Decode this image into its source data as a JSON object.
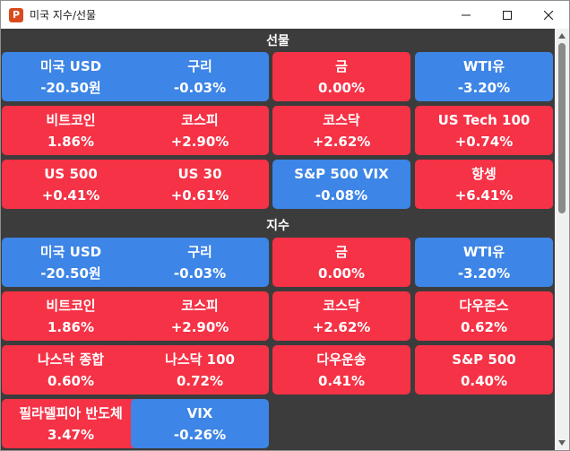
{
  "window": {
    "icon_letter": "P",
    "title": "미국 지수/선물"
  },
  "sections": [
    {
      "header": "선물",
      "tiles": [
        {
          "name": "미국 USD",
          "value": "-20.50원",
          "color": "blue"
        },
        {
          "name": "구리",
          "value": "-0.03%",
          "color": "blue"
        },
        {
          "name": "금",
          "value": "0.00%",
          "color": "red"
        },
        {
          "name": "WTI유",
          "value": "-3.20%",
          "color": "blue"
        },
        {
          "name": "비트코인",
          "value": "1.86%",
          "color": "red"
        },
        {
          "name": "코스피",
          "value": "+2.90%",
          "color": "red"
        },
        {
          "name": "코스닥",
          "value": "+2.62%",
          "color": "red"
        },
        {
          "name": "US Tech 100",
          "value": "+0.74%",
          "color": "red"
        },
        {
          "name": "US 500",
          "value": "+0.41%",
          "color": "red"
        },
        {
          "name": "US 30",
          "value": "+0.61%",
          "color": "red"
        },
        {
          "name": "S&P 500 VIX",
          "value": "-0.08%",
          "color": "blue"
        },
        {
          "name": "항셍",
          "value": "+6.41%",
          "color": "red"
        }
      ]
    },
    {
      "header": "지수",
      "tiles": [
        {
          "name": "미국 USD",
          "value": "-20.50원",
          "color": "blue"
        },
        {
          "name": "구리",
          "value": "-0.03%",
          "color": "blue"
        },
        {
          "name": "금",
          "value": "0.00%",
          "color": "red"
        },
        {
          "name": "WTI유",
          "value": "-3.20%",
          "color": "blue"
        },
        {
          "name": "비트코인",
          "value": "1.86%",
          "color": "red"
        },
        {
          "name": "코스피",
          "value": "+2.90%",
          "color": "red"
        },
        {
          "name": "코스닥",
          "value": "+2.62%",
          "color": "red"
        },
        {
          "name": "다우존스",
          "value": "0.62%",
          "color": "red"
        },
        {
          "name": "나스닥 종합",
          "value": "0.60%",
          "color": "red"
        },
        {
          "name": "나스닥 100",
          "value": "0.72%",
          "color": "red"
        },
        {
          "name": "다우운송",
          "value": "0.41%",
          "color": "red"
        },
        {
          "name": "S&P 500",
          "value": "0.40%",
          "color": "red"
        },
        {
          "name": "필라델피아 반도체",
          "value": "3.47%",
          "color": "red"
        },
        {
          "name": "VIX",
          "value": "-0.26%",
          "color": "blue"
        }
      ]
    }
  ],
  "colors": {
    "up": "#f53246",
    "down": "#3d85e6",
    "background": "#3c3c3c"
  }
}
